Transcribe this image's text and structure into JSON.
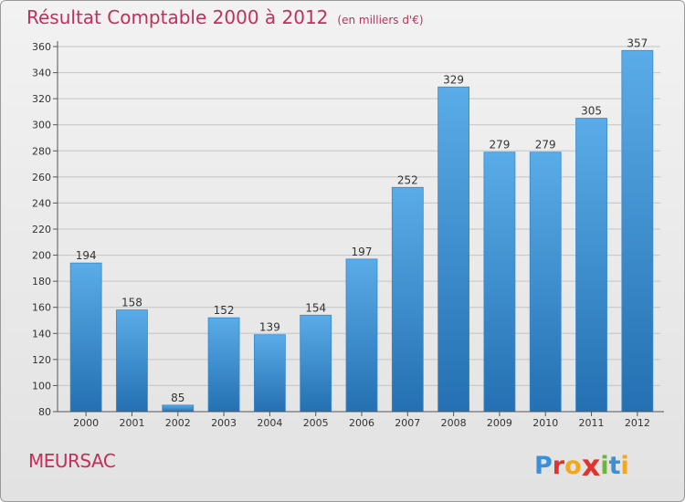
{
  "header": {
    "title": "Résultat Comptable 2000 à 2012",
    "unit": "(en milliers d'€)"
  },
  "footer": {
    "commune": "MEURSAC",
    "logo_text": "Proxiti",
    "logo_letters": [
      {
        "char": "P",
        "color": "#3a8fd6"
      },
      {
        "char": "r",
        "color": "#e0322f"
      },
      {
        "char": "o",
        "color": "#f2a81d"
      },
      {
        "char": "x",
        "color": "#e0322f"
      },
      {
        "char": "i",
        "color": "#6bb53a"
      },
      {
        "char": "t",
        "color": "#3a8fd6"
      },
      {
        "char": "i",
        "color": "#f2a81d"
      }
    ]
  },
  "colors": {
    "bar_top": "#5aace8",
    "bar_bottom": "#2470b2",
    "bar_edge": "#3a88cc",
    "grid": "#c4c4c4",
    "title": "#c0305a"
  },
  "chart_data": {
    "type": "bar",
    "title": "Résultat Comptable 2000 à 2012",
    "subtitle": "(en milliers d'€)",
    "xlabel": "",
    "ylabel": "",
    "categories": [
      "2000",
      "2001",
      "2002",
      "2003",
      "2004",
      "2005",
      "2006",
      "2007",
      "2008",
      "2009",
      "2010",
      "2011",
      "2012"
    ],
    "values": [
      194,
      158,
      85,
      152,
      139,
      154,
      197,
      252,
      329,
      279,
      279,
      305,
      357
    ],
    "ylim": [
      80,
      360
    ],
    "yticks": [
      80,
      100,
      120,
      140,
      160,
      180,
      200,
      220,
      240,
      260,
      280,
      300,
      320,
      340,
      360
    ],
    "grid": true,
    "legend": "none"
  }
}
